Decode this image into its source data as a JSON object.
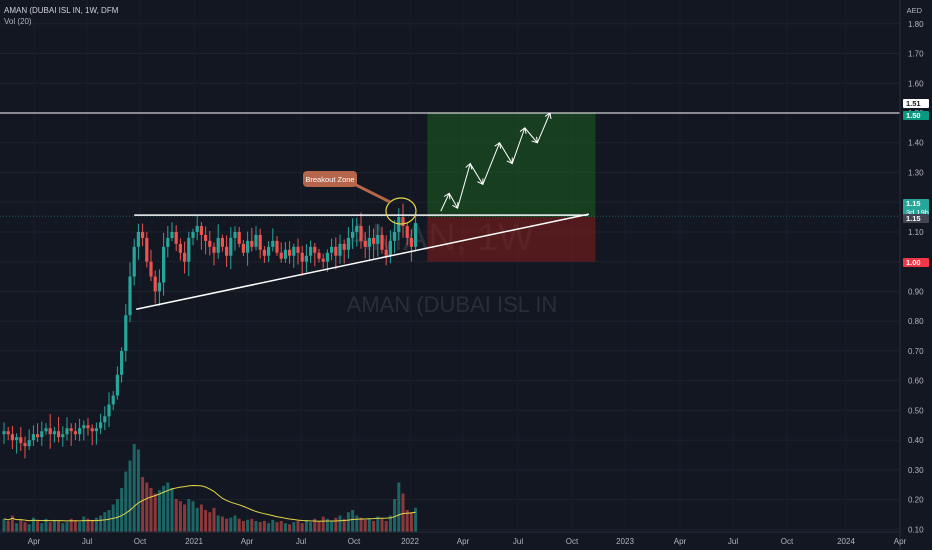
{
  "header": {
    "symbol_line": "AMAN (DUBAI ISL IN, 1W, DFM",
    "indicator": "Vol (20)"
  },
  "currency": "AED",
  "watermark": {
    "line1": "AMAN, 1W",
    "line2": "AMAN (DUBAI ISL IN"
  },
  "annotation": "Breakout Zone",
  "price_tags": [
    {
      "label": "1.51",
      "value": 1.51,
      "bg": "#ffffff",
      "fg": "#131722"
    },
    {
      "label": "1.50",
      "value": 1.5,
      "bg": "#089981",
      "fg": "#ffffff"
    },
    {
      "label": "1.15",
      "sub": "3d 19h",
      "value": 1.17,
      "bg": "#26a69a",
      "fg": "#ffffff"
    },
    {
      "label": "1.15",
      "value": 1.15,
      "bg": "#434651",
      "fg": "#ffffff"
    },
    {
      "label": "1.00",
      "value": 1.0,
      "bg": "#f23645",
      "fg": "#ffffff"
    }
  ],
  "colors": {
    "up": "#26a69a",
    "down": "#ef5350",
    "vol_ma": "#e5d846",
    "target_zone": "#1b5e20",
    "stop_zone": "#7f1d1d"
  },
  "chart_data": {
    "type": "candlestick",
    "title": "AMAN (DUBAI ISL IN, 1W, DFM",
    "ylabel": "AED",
    "ylim": [
      0.08,
      1.86
    ],
    "y_ticks": [
      0.1,
      0.2,
      0.3,
      0.4,
      0.5,
      0.6,
      0.7,
      0.8,
      0.9,
      1.0,
      1.1,
      1.2,
      1.3,
      1.4,
      1.5,
      1.6,
      1.7,
      1.8
    ],
    "x_ticks": [
      "Apr",
      "Jul",
      "Oct",
      "2021",
      "Apr",
      "Jul",
      "Oct",
      "2022",
      "Apr",
      "Jul",
      "Oct",
      "2023",
      "Apr",
      "Jul",
      "Oct",
      "2024",
      "Apr"
    ],
    "weeks_per_quarter": 13,
    "close_weekly": [
      0.43,
      0.42,
      0.4,
      0.41,
      0.39,
      0.38,
      0.4,
      0.42,
      0.41,
      0.43,
      0.44,
      0.42,
      0.43,
      0.41,
      0.42,
      0.44,
      0.43,
      0.42,
      0.44,
      0.45,
      0.44,
      0.43,
      0.44,
      0.46,
      0.48,
      0.52,
      0.55,
      0.62,
      0.7,
      0.82,
      0.95,
      1.05,
      1.1,
      1.08,
      1.0,
      0.95,
      0.9,
      0.93,
      1.05,
      1.08,
      1.1,
      1.06,
      1.03,
      1.0,
      1.08,
      1.1,
      1.12,
      1.09,
      1.07,
      1.05,
      1.03,
      1.08,
      1.05,
      1.02,
      1.08,
      1.1,
      1.06,
      1.03,
      1.07,
      1.05,
      1.09,
      1.04,
      1.02,
      1.05,
      1.07,
      1.03,
      1.01,
      1.04,
      1.02,
      1.05,
      1.03,
      1.0,
      1.02,
      1.05,
      1.03,
      1.01,
      1.0,
      1.03,
      1.05,
      1.02,
      1.06,
      1.04,
      1.08,
      1.1,
      1.12,
      1.07,
      1.05,
      1.08,
      1.06,
      1.09,
      1.04,
      1.02,
      1.07,
      1.1,
      1.15,
      1.12,
      1.08,
      1.05,
      1.13
    ],
    "volume_weekly": [
      0.12,
      0.1,
      0.15,
      0.08,
      0.11,
      0.09,
      0.07,
      0.13,
      0.1,
      0.08,
      0.12,
      0.09,
      0.11,
      0.1,
      0.08,
      0.09,
      0.12,
      0.1,
      0.09,
      0.14,
      0.12,
      0.11,
      0.13,
      0.15,
      0.18,
      0.2,
      0.25,
      0.3,
      0.4,
      0.55,
      0.65,
      0.8,
      0.75,
      0.5,
      0.45,
      0.4,
      0.35,
      0.38,
      0.42,
      0.45,
      0.4,
      0.3,
      0.28,
      0.25,
      0.3,
      0.28,
      0.22,
      0.25,
      0.2,
      0.18,
      0.22,
      0.15,
      0.14,
      0.12,
      0.13,
      0.15,
      0.12,
      0.1,
      0.11,
      0.12,
      0.1,
      0.09,
      0.1,
      0.08,
      0.11,
      0.09,
      0.1,
      0.08,
      0.07,
      0.09,
      0.1,
      0.08,
      0.11,
      0.09,
      0.12,
      0.1,
      0.14,
      0.12,
      0.1,
      0.13,
      0.15,
      0.12,
      0.18,
      0.2,
      0.15,
      0.13,
      0.11,
      0.12,
      0.1,
      0.14,
      0.12,
      0.1,
      0.15,
      0.3,
      0.45,
      0.35,
      0.2,
      0.18,
      0.22
    ],
    "resistance": 1.15,
    "support_line": [
      [
        41,
        0.84
      ],
      [
        124,
        1.16
      ]
    ],
    "target_line": 1.5,
    "long_position": {
      "start_week": 107,
      "end_week": 127,
      "entry": 1.15,
      "target": 1.5,
      "stop": 1.0
    },
    "projection_path": [
      [
        104,
        1.17
      ],
      [
        106,
        1.23
      ],
      [
        108,
        1.18
      ],
      [
        111,
        1.33
      ],
      [
        114,
        1.26
      ],
      [
        118,
        1.4
      ],
      [
        121,
        1.33
      ],
      [
        124,
        1.45
      ],
      [
        127,
        1.4
      ],
      [
        130,
        1.5
      ]
    ]
  }
}
